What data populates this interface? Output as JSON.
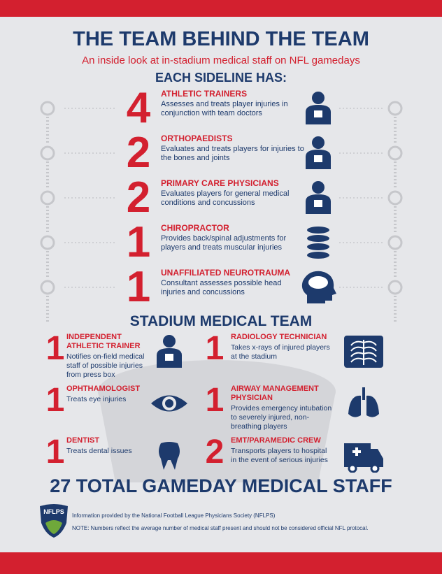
{
  "header": {
    "title": "THE TEAM BEHIND THE TEAM",
    "subtitle": "An inside look at in-stadium medical staff on NFL gamedays"
  },
  "sideline": {
    "heading": "EACH SIDELINE HAS:",
    "items": [
      {
        "count": 4,
        "title": "ATHLETIC TRAINERS",
        "description": "Assesses and treats player injuries in conjunction with team doctors"
      },
      {
        "count": 2,
        "title": "ORTHOPAEDISTS",
        "description": "Evaluates and treats players for injuries to the bones and joints"
      },
      {
        "count": 2,
        "title": "PRIMARY CARE PHYSICIANS",
        "description": "Evaluates players for general medical conditions and concussions"
      },
      {
        "count": 1,
        "title": "CHIROPRACTOR",
        "description": "Provides back/spinal adjustments for players and treats muscular injuries"
      },
      {
        "count": 1,
        "title": "UNAFFILIATED NEUROTRAUMA",
        "description": "Consultant assesses possible head injuries and concussions"
      }
    ]
  },
  "stadium": {
    "heading": "STADIUM MEDICAL TEAM",
    "items": [
      {
        "count": 1,
        "title": "INDEPENDENT ATHLETIC TRAINER",
        "description": "Notifies on-field medical staff of possible injuries from press box"
      },
      {
        "count": 1,
        "title": "RADIOLOGY TECHNICIAN",
        "description": "Takes x-rays of injured players at the stadium"
      },
      {
        "count": 1,
        "title": "OPHTHAMOLOGIST",
        "description": "Treats eye injuries"
      },
      {
        "count": 1,
        "title": "AIRWAY MANAGEMENT PHYSICIAN",
        "description": "Provides emergency intubation to severely injured, non-breathing players"
      },
      {
        "count": 1,
        "title": "DENTIST",
        "description": "Treats dental issues"
      },
      {
        "count": 2,
        "title": "EMT/PARAMEDIC CREW",
        "description": "Transports players to hospital in the event of serious injuries"
      }
    ]
  },
  "total": {
    "count": 27,
    "label": "TOTAL GAMEDAY MEDICAL STAFF"
  },
  "footer": {
    "logo": "NFLPS",
    "source": "Information provided by the National Football League Physicians Society (NFLPS)",
    "note": "NOTE: Numbers reflect the average number of medical staff present and should not be considered official NFL protocal."
  }
}
